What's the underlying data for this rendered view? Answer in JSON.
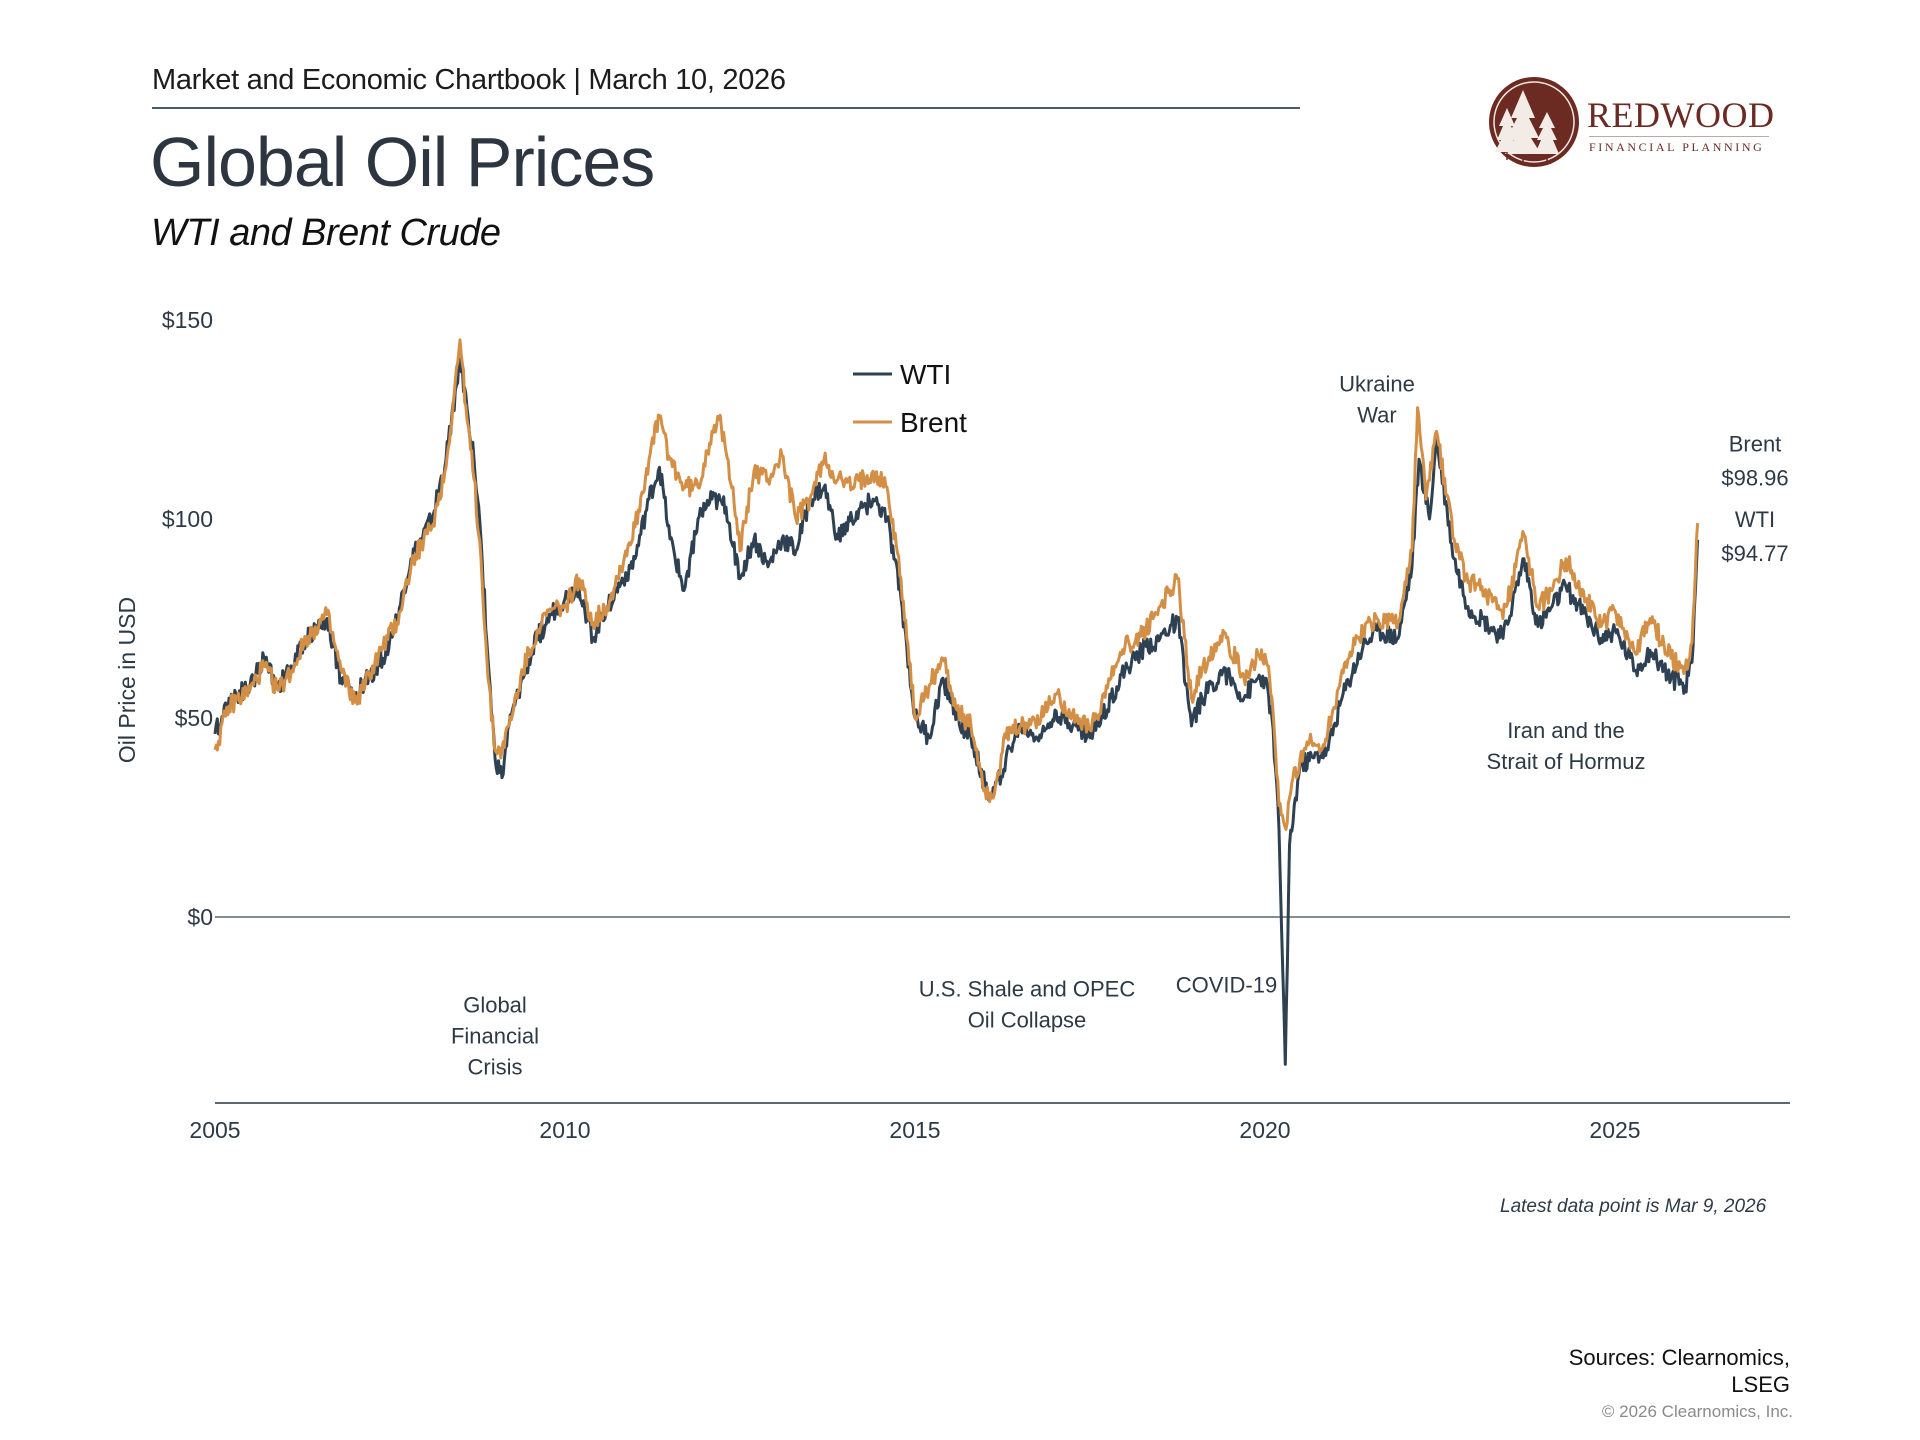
{
  "header": {
    "chartbook": "Market and Economic Chartbook | March 10, 2026",
    "title": "Global Oil Prices",
    "subtitle": "WTI and Brent Crude"
  },
  "logo": {
    "name": "REDWOOD",
    "tagline": "FINANCIAL PLANNING",
    "colors": {
      "primary": "#6b2a22"
    }
  },
  "footer": {
    "latest": "Latest data point is Mar 9, 2026",
    "sources_line1": "Sources: Clearnomics,",
    "sources_line2": "LSEG",
    "copyright": "© 2026 Clearnomics, Inc."
  },
  "chart_data": {
    "type": "line",
    "title": "Global Oil Prices",
    "subtitle": "WTI and Brent Crude",
    "xlabel": "",
    "ylabel": "Oil Price in USD",
    "xlim": [
      2005,
      2027.5
    ],
    "ylim": [
      -40,
      150
    ],
    "y_ticks": [
      {
        "v": 0,
        "label": "$0"
      },
      {
        "v": 50,
        "label": "$50"
      },
      {
        "v": 100,
        "label": "$100"
      },
      {
        "v": 150,
        "label": "$150"
      }
    ],
    "x_ticks": [
      {
        "v": 2005,
        "label": "2005"
      },
      {
        "v": 2010,
        "label": "2010"
      },
      {
        "v": 2015,
        "label": "2015"
      },
      {
        "v": 2020,
        "label": "2020"
      },
      {
        "v": 2025,
        "label": "2025"
      }
    ],
    "grid": false,
    "legend": {
      "placement": "top-center",
      "entries": [
        {
          "name": "WTI",
          "color": "#2e4152"
        },
        {
          "name": "Brent",
          "color": "#d38f45"
        }
      ]
    },
    "series": [
      {
        "name": "WTI",
        "color": "#2e4152",
        "points": [
          [
            2005.0,
            46
          ],
          [
            2005.2,
            55
          ],
          [
            2005.5,
            58
          ],
          [
            2005.7,
            65
          ],
          [
            2005.9,
            58
          ],
          [
            2006.1,
            63
          ],
          [
            2006.3,
            70
          ],
          [
            2006.6,
            75
          ],
          [
            2006.8,
            60
          ],
          [
            2007.0,
            55
          ],
          [
            2007.1,
            58
          ],
          [
            2007.4,
            65
          ],
          [
            2007.6,
            75
          ],
          [
            2007.8,
            90
          ],
          [
            2007.95,
            95
          ],
          [
            2008.1,
            100
          ],
          [
            2008.3,
            115
          ],
          [
            2008.5,
            140
          ],
          [
            2008.6,
            128
          ],
          [
            2008.7,
            115
          ],
          [
            2008.8,
            95
          ],
          [
            2008.9,
            65
          ],
          [
            2009.0,
            40
          ],
          [
            2009.1,
            35
          ],
          [
            2009.2,
            48
          ],
          [
            2009.4,
            60
          ],
          [
            2009.6,
            70
          ],
          [
            2009.8,
            76
          ],
          [
            2010.0,
            80
          ],
          [
            2010.2,
            83
          ],
          [
            2010.4,
            70
          ],
          [
            2010.6,
            78
          ],
          [
            2010.8,
            84
          ],
          [
            2011.0,
            90
          ],
          [
            2011.2,
            105
          ],
          [
            2011.35,
            113
          ],
          [
            2011.5,
            95
          ],
          [
            2011.7,
            82
          ],
          [
            2011.9,
            100
          ],
          [
            2012.1,
            105
          ],
          [
            2012.3,
            103
          ],
          [
            2012.5,
            85
          ],
          [
            2012.7,
            95
          ],
          [
            2012.9,
            88
          ],
          [
            2013.1,
            95
          ],
          [
            2013.3,
            92
          ],
          [
            2013.5,
            105
          ],
          [
            2013.7,
            108
          ],
          [
            2013.9,
            95
          ],
          [
            2014.1,
            100
          ],
          [
            2014.4,
            105
          ],
          [
            2014.6,
            100
          ],
          [
            2014.8,
            80
          ],
          [
            2015.0,
            50
          ],
          [
            2015.2,
            45
          ],
          [
            2015.4,
            60
          ],
          [
            2015.6,
            50
          ],
          [
            2015.8,
            45
          ],
          [
            2016.0,
            33
          ],
          [
            2016.1,
            30
          ],
          [
            2016.3,
            40
          ],
          [
            2016.5,
            48
          ],
          [
            2016.8,
            45
          ],
          [
            2017.0,
            52
          ],
          [
            2017.3,
            48
          ],
          [
            2017.5,
            45
          ],
          [
            2017.8,
            55
          ],
          [
            2018.0,
            62
          ],
          [
            2018.3,
            68
          ],
          [
            2018.5,
            70
          ],
          [
            2018.75,
            75
          ],
          [
            2018.95,
            48
          ],
          [
            2019.1,
            55
          ],
          [
            2019.4,
            62
          ],
          [
            2019.7,
            55
          ],
          [
            2019.9,
            60
          ],
          [
            2020.0,
            60
          ],
          [
            2020.1,
            50
          ],
          [
            2020.2,
            22
          ],
          [
            2020.29,
            -37
          ],
          [
            2020.35,
            18
          ],
          [
            2020.5,
            38
          ],
          [
            2020.7,
            40
          ],
          [
            2020.9,
            42
          ],
          [
            2021.1,
            55
          ],
          [
            2021.4,
            68
          ],
          [
            2021.6,
            72
          ],
          [
            2021.9,
            70
          ],
          [
            2022.1,
            88
          ],
          [
            2022.2,
            115
          ],
          [
            2022.35,
            100
          ],
          [
            2022.45,
            120
          ],
          [
            2022.7,
            90
          ],
          [
            2022.9,
            78
          ],
          [
            2023.1,
            75
          ],
          [
            2023.4,
            70
          ],
          [
            2023.7,
            90
          ],
          [
            2023.9,
            73
          ],
          [
            2024.1,
            78
          ],
          [
            2024.3,
            83
          ],
          [
            2024.6,
            75
          ],
          [
            2024.8,
            70
          ],
          [
            2025.0,
            72
          ],
          [
            2025.3,
            62
          ],
          [
            2025.5,
            67
          ],
          [
            2025.8,
            60
          ],
          [
            2026.0,
            58
          ],
          [
            2026.1,
            64
          ],
          [
            2026.18,
            94.77
          ]
        ]
      },
      {
        "name": "Brent",
        "color": "#d38f45",
        "points": [
          [
            2005.0,
            42
          ],
          [
            2005.2,
            53
          ],
          [
            2005.5,
            57
          ],
          [
            2005.7,
            63
          ],
          [
            2005.9,
            57
          ],
          [
            2006.1,
            62
          ],
          [
            2006.3,
            70
          ],
          [
            2006.6,
            76
          ],
          [
            2006.8,
            62
          ],
          [
            2007.0,
            54
          ],
          [
            2007.1,
            57
          ],
          [
            2007.4,
            68
          ],
          [
            2007.6,
            74
          ],
          [
            2007.8,
            88
          ],
          [
            2007.95,
            94
          ],
          [
            2008.1,
            98
          ],
          [
            2008.3,
            113
          ],
          [
            2008.5,
            145
          ],
          [
            2008.6,
            125
          ],
          [
            2008.7,
            110
          ],
          [
            2008.8,
            90
          ],
          [
            2008.9,
            60
          ],
          [
            2009.0,
            42
          ],
          [
            2009.1,
            42
          ],
          [
            2009.2,
            48
          ],
          [
            2009.4,
            62
          ],
          [
            2009.6,
            72
          ],
          [
            2009.8,
            77
          ],
          [
            2010.0,
            78
          ],
          [
            2010.2,
            85
          ],
          [
            2010.4,
            74
          ],
          [
            2010.6,
            78
          ],
          [
            2010.8,
            88
          ],
          [
            2011.0,
            98
          ],
          [
            2011.2,
            115
          ],
          [
            2011.35,
            126
          ],
          [
            2011.5,
            115
          ],
          [
            2011.7,
            108
          ],
          [
            2011.9,
            108
          ],
          [
            2012.1,
            122
          ],
          [
            2012.2,
            125
          ],
          [
            2012.4,
            108
          ],
          [
            2012.5,
            92
          ],
          [
            2012.7,
            112
          ],
          [
            2012.9,
            110
          ],
          [
            2013.1,
            116
          ],
          [
            2013.3,
            100
          ],
          [
            2013.5,
            105
          ],
          [
            2013.7,
            115
          ],
          [
            2013.9,
            110
          ],
          [
            2014.1,
            108
          ],
          [
            2014.4,
            112
          ],
          [
            2014.6,
            108
          ],
          [
            2014.8,
            85
          ],
          [
            2015.0,
            50
          ],
          [
            2015.2,
            58
          ],
          [
            2015.4,
            65
          ],
          [
            2015.6,
            52
          ],
          [
            2015.8,
            48
          ],
          [
            2016.0,
            32
          ],
          [
            2016.1,
            30
          ],
          [
            2016.3,
            45
          ],
          [
            2016.5,
            48
          ],
          [
            2016.8,
            50
          ],
          [
            2017.0,
            56
          ],
          [
            2017.3,
            50
          ],
          [
            2017.5,
            47
          ],
          [
            2017.8,
            60
          ],
          [
            2018.0,
            68
          ],
          [
            2018.3,
            72
          ],
          [
            2018.5,
            78
          ],
          [
            2018.75,
            85
          ],
          [
            2018.95,
            55
          ],
          [
            2019.1,
            62
          ],
          [
            2019.4,
            72
          ],
          [
            2019.7,
            60
          ],
          [
            2019.9,
            66
          ],
          [
            2020.0,
            66
          ],
          [
            2020.1,
            55
          ],
          [
            2020.2,
            28
          ],
          [
            2020.3,
            22
          ],
          [
            2020.4,
            35
          ],
          [
            2020.6,
            44
          ],
          [
            2020.8,
            42
          ],
          [
            2020.95,
            50
          ],
          [
            2021.1,
            62
          ],
          [
            2021.4,
            72
          ],
          [
            2021.6,
            75
          ],
          [
            2021.9,
            74
          ],
          [
            2022.1,
            92
          ],
          [
            2022.18,
            128
          ],
          [
            2022.3,
            105
          ],
          [
            2022.45,
            122
          ],
          [
            2022.7,
            95
          ],
          [
            2022.9,
            84
          ],
          [
            2023.1,
            83
          ],
          [
            2023.4,
            75
          ],
          [
            2023.7,
            96
          ],
          [
            2023.9,
            78
          ],
          [
            2024.1,
            82
          ],
          [
            2024.3,
            90
          ],
          [
            2024.6,
            80
          ],
          [
            2024.8,
            73
          ],
          [
            2025.0,
            77
          ],
          [
            2025.3,
            66
          ],
          [
            2025.5,
            75
          ],
          [
            2025.8,
            65
          ],
          [
            2026.0,
            62
          ],
          [
            2026.1,
            69
          ],
          [
            2026.18,
            98.96
          ]
        ]
      }
    ],
    "annotations": [
      {
        "lines": [
          "Global",
          "Financial",
          "Crisis"
        ],
        "x": 2009.0,
        "y": -24,
        "anchor": "middle"
      },
      {
        "lines": [
          "U.S. Shale and OPEC",
          "Oil Collapse"
        ],
        "x": 2016.6,
        "y": -20,
        "anchor": "middle"
      },
      {
        "lines": [
          "COVID-19"
        ],
        "x": 2019.45,
        "y": -19,
        "anchor": "middle"
      },
      {
        "lines": [
          "Ukraine",
          "War"
        ],
        "x": 2021.6,
        "y": 132,
        "anchor": "middle"
      },
      {
        "lines": [
          "Iran and the",
          "Strait of Hormuz"
        ],
        "x": 2024.3,
        "y": 45,
        "anchor": "middle"
      }
    ],
    "end_labels": [
      {
        "lines": [
          "Brent",
          "$98.96"
        ],
        "x": 2027.0,
        "y": 117
      },
      {
        "lines": [
          "WTI",
          "$94.77"
        ],
        "x": 2027.0,
        "y": 98
      }
    ]
  }
}
